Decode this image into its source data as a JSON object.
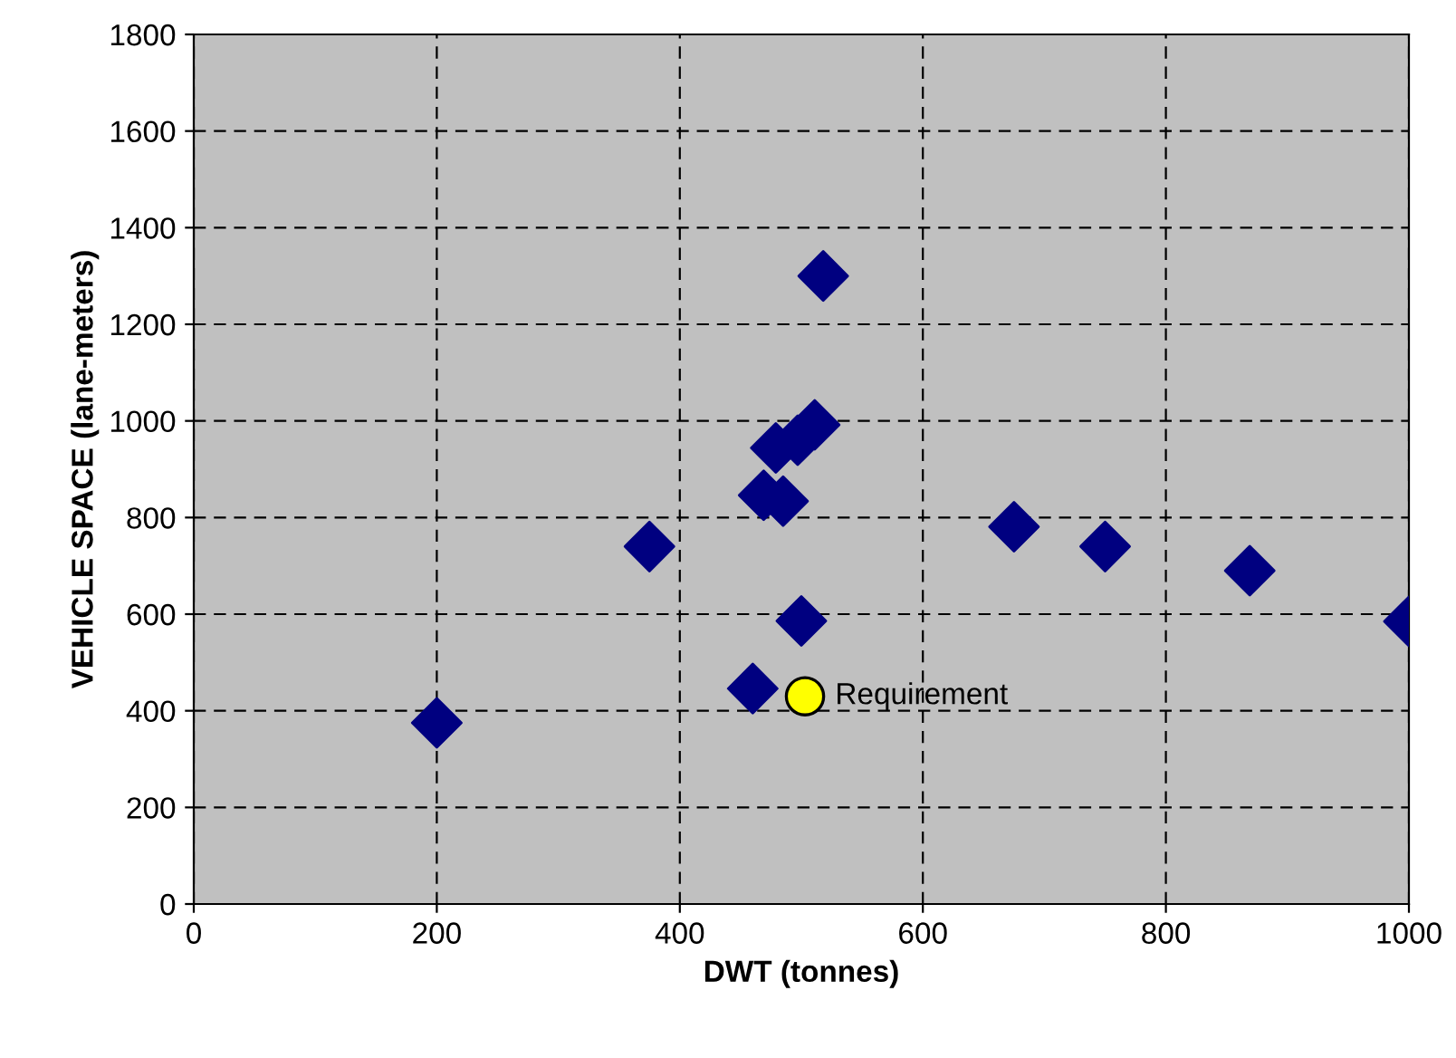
{
  "chart_data": {
    "type": "scatter",
    "xlabel": "DWT (tonnes)",
    "ylabel": "VEHICLE SPACE (lane-meters)",
    "series": [
      {
        "color": "#000080",
        "marker": "diamond",
        "x": [
          200,
          375,
          460,
          469,
          479,
          485,
          500,
          497,
          511,
          518,
          675,
          750,
          869,
          1000
        ],
        "values": [
          375,
          740,
          446,
          846,
          944,
          834,
          586,
          960,
          992,
          1300,
          781,
          740,
          690,
          585
        ]
      },
      {
        "name": "Requirement",
        "color": "#ffff00",
        "marker": "circle",
        "x": [
          503
        ],
        "values": [
          430
        ]
      }
    ],
    "xlim": [
      0,
      1000
    ],
    "xticks": [
      0,
      200,
      400,
      600,
      800,
      1000
    ],
    "ylim": [
      0,
      1800
    ],
    "yticks": [
      0,
      200,
      400,
      600,
      800,
      1000,
      1200,
      1400,
      1600,
      1800
    ],
    "grid": true
  }
}
